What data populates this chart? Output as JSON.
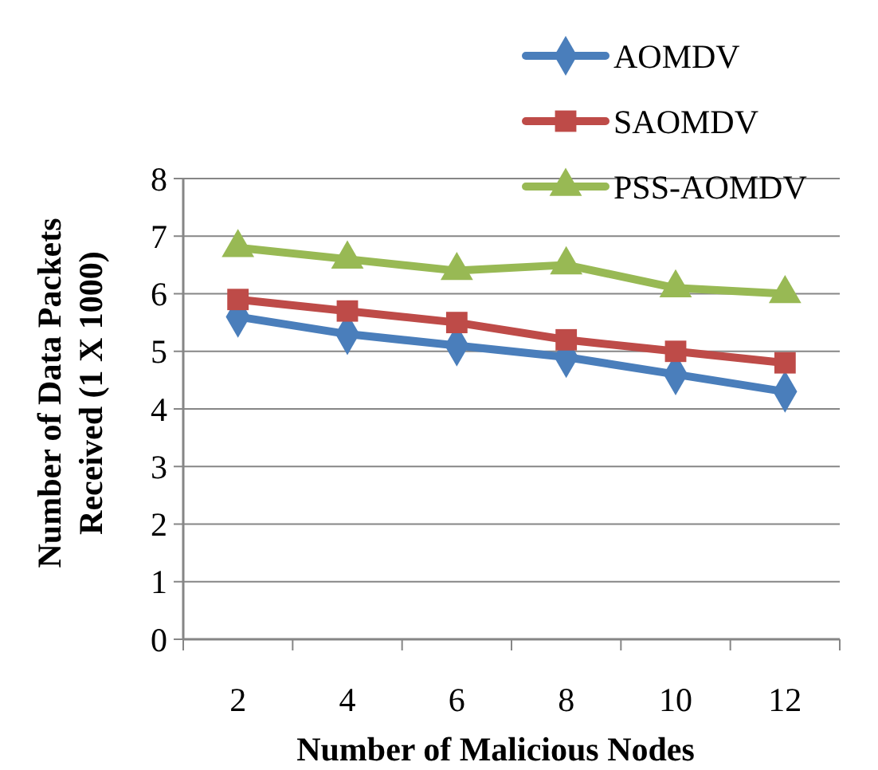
{
  "chart_data": {
    "type": "line",
    "xlabel": "Number of Malicious Nodes",
    "ylabel": "Number of Data Packets\nReceived (1 X 1000)",
    "categories": [
      "2",
      "4",
      "6",
      "8",
      "10",
      "12"
    ],
    "series": [
      {
        "name": "AOMDV",
        "color": "#4a7ebb",
        "marker": "diamond",
        "values": [
          5.6,
          5.3,
          5.1,
          4.9,
          4.6,
          4.3
        ]
      },
      {
        "name": "SAOMDV",
        "color": "#be4b48",
        "marker": "square",
        "values": [
          5.9,
          5.7,
          5.5,
          5.2,
          5.0,
          4.8
        ]
      },
      {
        "name": "PSS-AOMDV",
        "color": "#98b954",
        "marker": "triangle",
        "values": [
          6.8,
          6.6,
          6.4,
          6.5,
          6.1,
          6.0
        ]
      }
    ],
    "ylim": [
      0,
      8
    ],
    "yticks": [
      0,
      1,
      2,
      3,
      4,
      5,
      6,
      7,
      8
    ],
    "grid": "y",
    "legend": "top right"
  }
}
